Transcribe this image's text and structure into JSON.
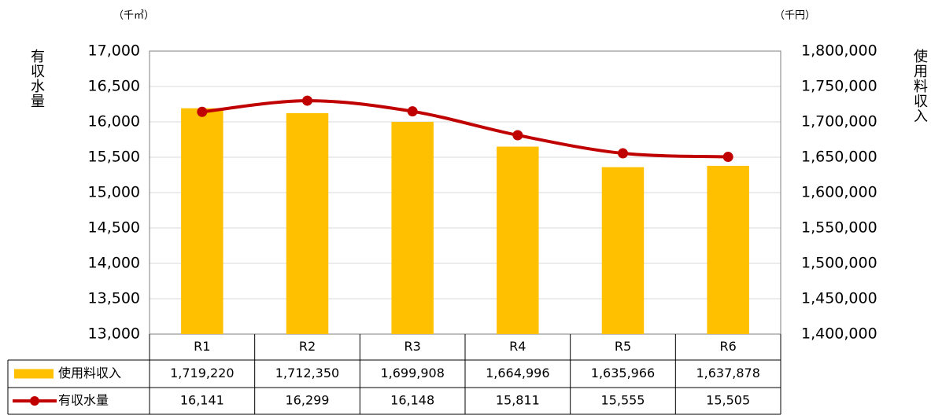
{
  "chart_data": {
    "type": "bar-line",
    "ylabel": "有収水量",
    "y2label": "使用料収入",
    "yunit": "（千㎥）",
    "y2unit": "（千円）",
    "categories": [
      "R1",
      "R2",
      "R3",
      "R4",
      "R5",
      "R6"
    ],
    "series": [
      {
        "name": "使用料収入",
        "type": "bar",
        "axis": "y2",
        "color": "#FFC000",
        "values": [
          1719220,
          1712350,
          1699908,
          1664996,
          1635966,
          1637878
        ],
        "value_labels": [
          "1,719,220",
          "1,712,350",
          "1,699,908",
          "1,664,996",
          "1,635,966",
          "1,637,878"
        ]
      },
      {
        "name": "有収水量",
        "type": "line",
        "axis": "y",
        "color": "#C00000",
        "values": [
          16141,
          16299,
          16148,
          15811,
          15555,
          15505
        ],
        "value_labels": [
          "16,141",
          "16,299",
          "16,148",
          "15,811",
          "15,555",
          "15,505"
        ]
      }
    ],
    "ylim": [
      13000,
      17000
    ],
    "yticks": [
      {
        "value": 13000,
        "label": "13,000"
      },
      {
        "value": 13500,
        "label": "13,500"
      },
      {
        "value": 14000,
        "label": "14,000"
      },
      {
        "value": 14500,
        "label": "14,500"
      },
      {
        "value": 15000,
        "label": "15,000"
      },
      {
        "value": 15500,
        "label": "15,500"
      },
      {
        "value": 16000,
        "label": "16,000"
      },
      {
        "value": 16500,
        "label": "16,500"
      },
      {
        "value": 17000,
        "label": "17,000"
      }
    ],
    "y2lim": [
      1400000,
      1800000
    ],
    "y2ticks": [
      {
        "value": 1400000,
        "label": "1,400,000"
      },
      {
        "value": 1450000,
        "label": "1,450,000"
      },
      {
        "value": 1500000,
        "label": "1,500,000"
      },
      {
        "value": 1550000,
        "label": "1,550,000"
      },
      {
        "value": 1600000,
        "label": "1,600,000"
      },
      {
        "value": 1650000,
        "label": "1,650,000"
      },
      {
        "value": 1700000,
        "label": "1,700,000"
      },
      {
        "value": 1750000,
        "label": "1,750,000"
      },
      {
        "value": 1800000,
        "label": "1,800,000"
      }
    ],
    "grid": true
  }
}
